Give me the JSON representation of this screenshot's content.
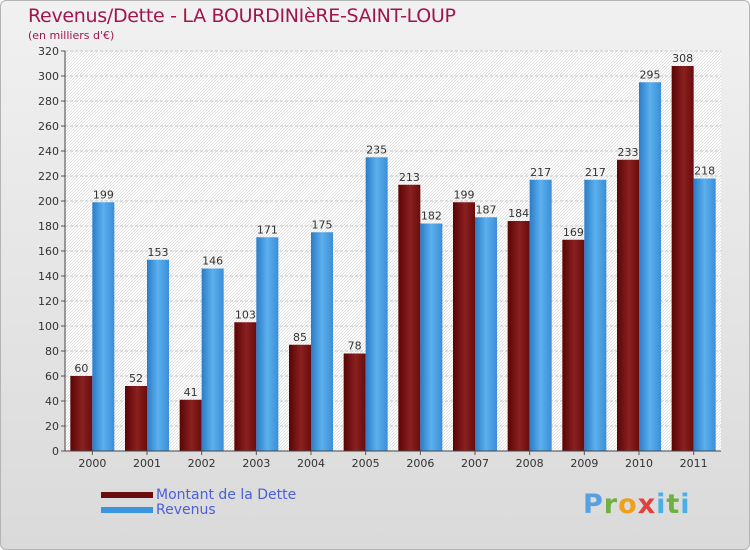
{
  "header": {
    "title": "Revenus/Dette - LA BOURDINIèRE-SAINT-LOUP",
    "subtitle": "(en milliers d'€)"
  },
  "legend": {
    "debt_label": "Montant de la Dette",
    "revenue_label": "Revenus"
  },
  "logo": {
    "text": "Proxiti"
  },
  "colors": {
    "debt": "#7a1414",
    "revenue": "#3b94de",
    "title": "#a01550",
    "legend_text": "#4a5fd8"
  },
  "chart_data": {
    "type": "bar",
    "title": "Revenus/Dette - LA BOURDINIèRE-SAINT-LOUP",
    "ylabel": "(en milliers d'€)",
    "xlabel": "",
    "categories": [
      "2000",
      "2001",
      "2002",
      "2003",
      "2004",
      "2005",
      "2006",
      "2007",
      "2008",
      "2009",
      "2010",
      "2011"
    ],
    "series": [
      {
        "name": "Montant de la Dette",
        "values": [
          60,
          52,
          41,
          103,
          85,
          78,
          213,
          199,
          184,
          169,
          233,
          308
        ]
      },
      {
        "name": "Revenus",
        "values": [
          199,
          153,
          146,
          171,
          175,
          235,
          182,
          187,
          217,
          217,
          295,
          218
        ]
      }
    ],
    "ylim": [
      0,
      320
    ],
    "yticks": [
      0,
      20,
      40,
      60,
      80,
      100,
      120,
      140,
      160,
      180,
      200,
      220,
      240,
      260,
      280,
      300,
      320
    ],
    "grid": true,
    "legend_position": "bottom-left"
  }
}
